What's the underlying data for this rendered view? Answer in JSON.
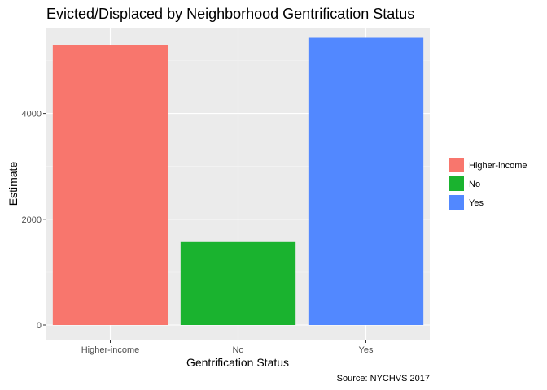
{
  "chart_data": {
    "type": "bar",
    "title": "Evicted/Displaced by Neighborhood Gentrification Status",
    "xlabel": "Gentrification Status",
    "ylabel": "Estimate",
    "caption": "Source: NYCHVS 2017",
    "categories": [
      "Higher-income",
      "No",
      "Yes"
    ],
    "values": [
      5290,
      1570,
      5430
    ],
    "colors": [
      "#F8766D",
      "#1AB32F",
      "#5288FF"
    ],
    "ylim": [
      0,
      5700
    ],
    "yticks": [
      0,
      2000,
      4000
    ],
    "ytick_labels": [
      "0",
      "2000",
      "4000"
    ],
    "grid": true,
    "panel_background": "#EBEBEB",
    "legend": {
      "placement": "right",
      "entries": [
        "Higher-income",
        "No",
        "Yes"
      ]
    }
  }
}
